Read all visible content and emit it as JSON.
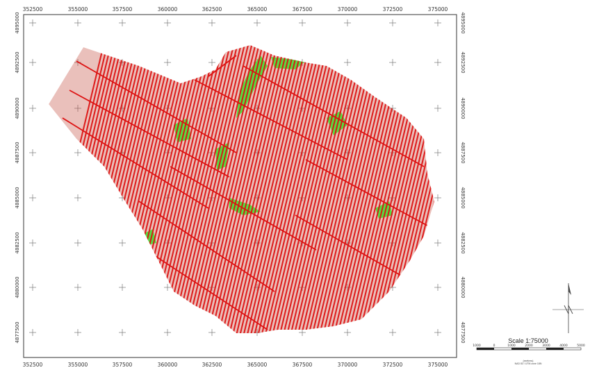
{
  "map": {
    "x_ticks": [
      "352500",
      "355000",
      "357500",
      "360000",
      "362500",
      "365000",
      "367500",
      "370000",
      "372500",
      "375000"
    ],
    "y_ticks": [
      "4895000",
      "4892500",
      "4890000",
      "4887500",
      "4885000",
      "4882500",
      "4880000",
      "4877500"
    ]
  },
  "scale": {
    "title": "Scale 1:75000",
    "labels": [
      "1000",
      "0",
      "1000",
      "2000",
      "3000",
      "4000",
      "5000"
    ],
    "unit": "(meters)",
    "projection": "NAD 83 / UTM zone 18N"
  },
  "colors": {
    "flight_line": "#dd1111",
    "coverage_fill": "#55dd44",
    "frame": "#333333",
    "grid_cross": "#777777"
  },
  "icons": {
    "north_arrow": "north-arrow-icon"
  }
}
